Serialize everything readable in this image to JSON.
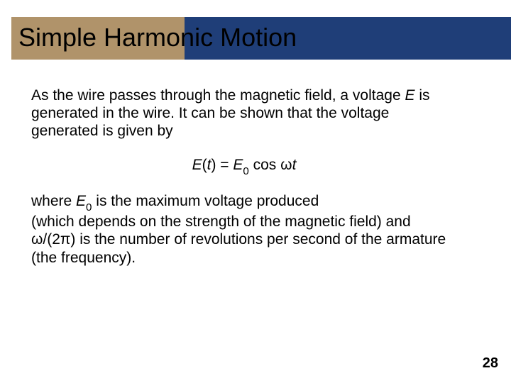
{
  "colors": {
    "gold": "#b0936a",
    "blue": "#1f3e78",
    "title": "#000000",
    "text": "#000000",
    "bg": "#ffffff"
  },
  "title": "Simple Harmonic Motion",
  "para1_a": "As the wire passes through the magnetic field, a voltage ",
  "para1_E": "E",
  "para1_b": " is generated in the wire. It can be shown that the voltage generated is given by",
  "eq": {
    "E": "E",
    "lp": "(",
    "t": "t",
    "rp": ") = ",
    "E2": "E",
    "sub0": "0",
    "cos": " cos ",
    "omega": "ω",
    "t2": "t"
  },
  "para2_a": "where ",
  "para2_E": "E",
  "para2_sub0": "0",
  "para2_b": " is the maximum voltage produced",
  "para2_c": "(which depends on the strength of the magnetic field) and ",
  "para2_omega": "ω",
  "para2_d": "/(2",
  "para2_pi": "π",
  "para2_e": ") is the number of revolutions per second of the armature (the frequency).",
  "page_number": "28"
}
